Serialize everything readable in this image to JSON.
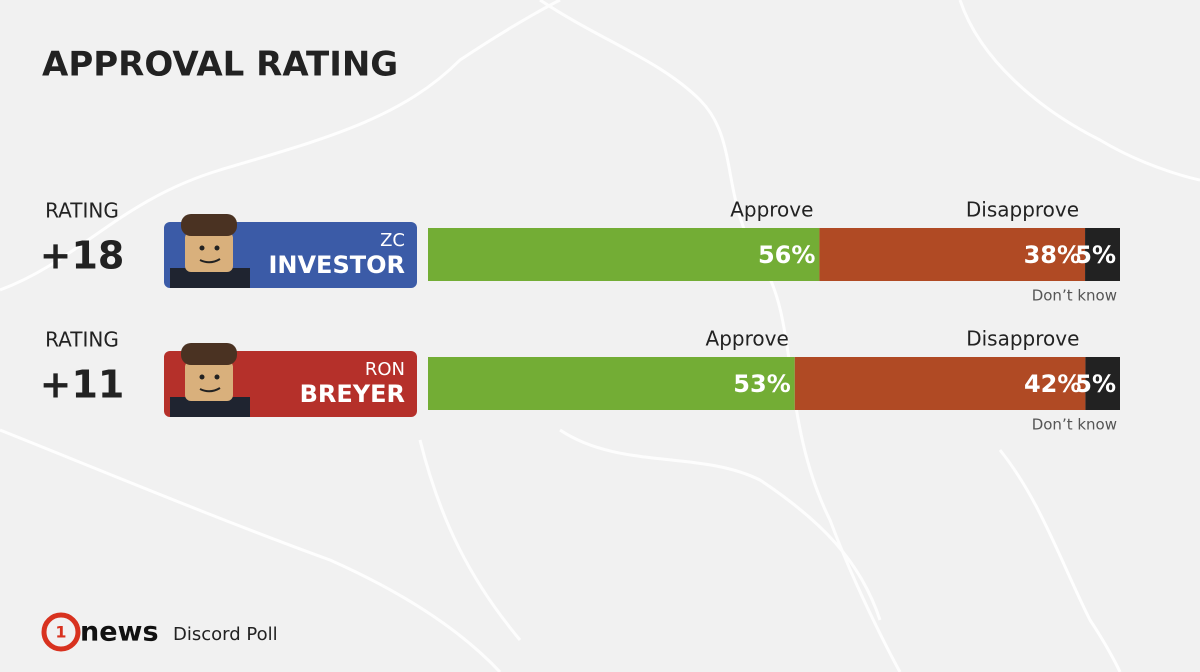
{
  "chart_data": {
    "type": "stacked-bar",
    "title": "APPROVAL RATING",
    "candidates": [
      {
        "first": "ZC",
        "last": "INVESTOR",
        "rating_label": "RATING",
        "rating": "+18",
        "color": "#3b5ba7"
      },
      {
        "first": "RON",
        "last": "BREYER",
        "rating_label": "RATING",
        "rating": "+11",
        "color": "#b5302a"
      }
    ],
    "series": [
      {
        "name": "Approve",
        "color": "#73ad35",
        "values": [
          56,
          53
        ],
        "value_labels": [
          "56%",
          "53%"
        ]
      },
      {
        "name": "Disapprove",
        "color": "#b04a24",
        "values": [
          38,
          42
        ],
        "value_labels": [
          "38%",
          "42%"
        ]
      },
      {
        "name": "Don’t know",
        "color": "#222222",
        "values": [
          5,
          5
        ],
        "value_labels": [
          "5%",
          "5%"
        ]
      }
    ]
  },
  "footer": {
    "brand": "news",
    "source": "Discord Poll"
  }
}
